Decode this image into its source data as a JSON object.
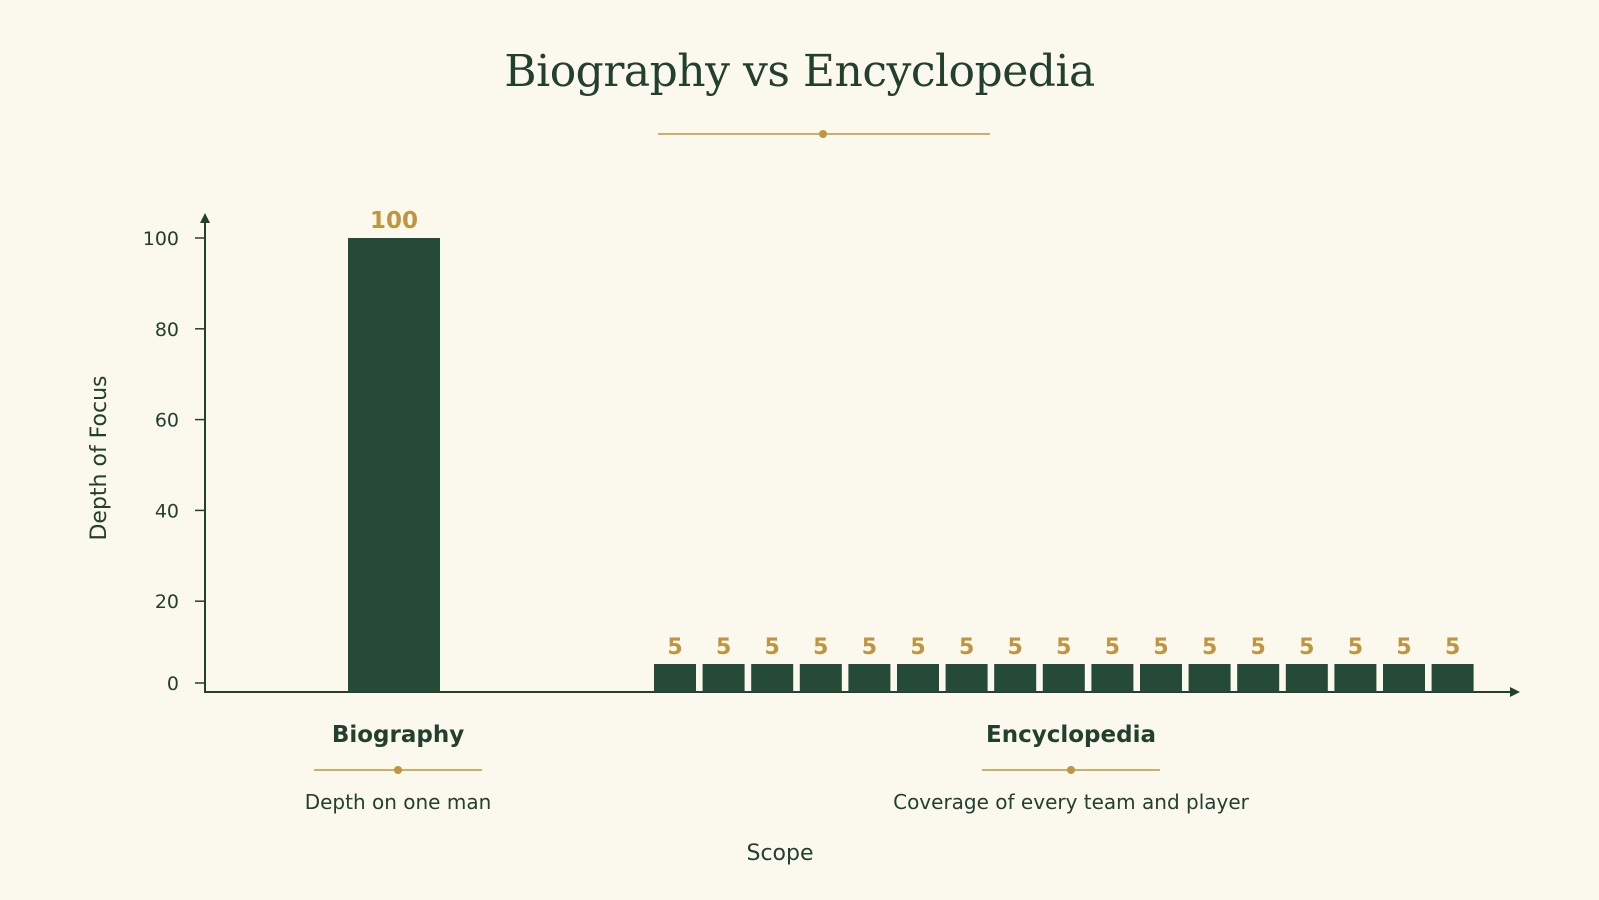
{
  "colors": {
    "background": "#fbf8ee",
    "bar": "#264a38",
    "text": "#23402f",
    "accent": "#bf953f"
  },
  "chart_data": {
    "type": "bar",
    "title": "Biography vs Encyclopedia",
    "xlabel": "Scope",
    "ylabel": "Depth of Focus",
    "ylim": [
      0,
      100
    ],
    "yticks": [
      0,
      20,
      40,
      60,
      80,
      100
    ],
    "grid": false,
    "groups": [
      {
        "category": "Biography",
        "description": "Depth on one man",
        "values": [
          100
        ]
      },
      {
        "category": "Encyclopedia",
        "description": "Coverage of every team and player",
        "values": [
          5,
          5,
          5,
          5,
          5,
          5,
          5,
          5,
          5,
          5,
          5,
          5,
          5,
          5,
          5,
          5,
          5
        ]
      }
    ]
  }
}
